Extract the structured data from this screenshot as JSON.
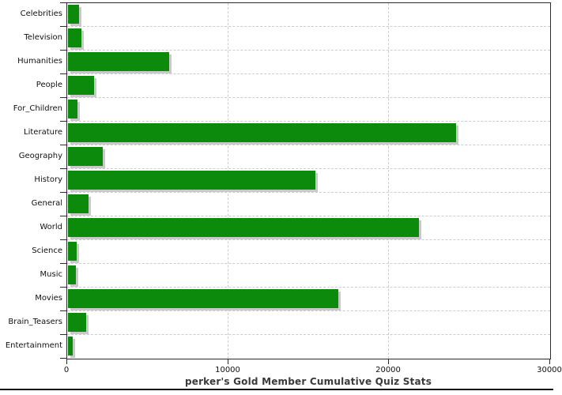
{
  "chart_data": {
    "type": "bar",
    "orientation": "horizontal",
    "title": "perker's Gold Member Cumulative Quiz Stats",
    "categories": [
      "Celebrities",
      "Television",
      "Humanities",
      "People",
      "For_Children",
      "Literature",
      "Geography",
      "History",
      "General",
      "World",
      "Science",
      "Music",
      "Movies",
      "Brain_Teasers",
      "Entertainment"
    ],
    "values": [
      700,
      850,
      6300,
      1600,
      570,
      24100,
      2150,
      15350,
      1300,
      21800,
      550,
      500,
      16800,
      1150,
      300
    ],
    "xlabel": "",
    "ylabel": "",
    "xlim": [
      0,
      30000
    ],
    "x_ticks": [
      0,
      10000,
      20000,
      30000
    ],
    "x_tick_labels": [
      "0",
      "10000",
      "20000",
      "30000"
    ],
    "legend": "none",
    "grid": "dashed horizontal at category boundaries and vertical at x ticks",
    "colors": {
      "bar": "#0b8a0b",
      "bar_shadow": "#c9c9c9",
      "gridline": "#cccccc",
      "axis": "#2b2b2b",
      "title": "#3a3a3a",
      "label": "#111111",
      "background": "#ffffff"
    }
  }
}
